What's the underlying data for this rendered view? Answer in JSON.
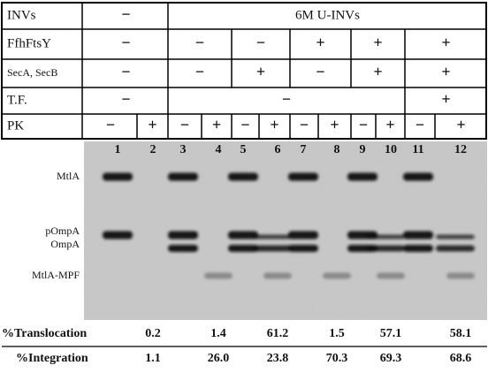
{
  "table": {
    "rows": [
      {
        "label": "INVs",
        "cells": [
          "−",
          "6M U-INVs"
        ]
      },
      {
        "label": "FfhFtsY",
        "cells": [
          "−",
          "−",
          "−",
          "+",
          "+",
          "+"
        ]
      },
      {
        "label": "SecA, SecB",
        "cells": [
          "−",
          "−",
          "+",
          "−",
          "+",
          "+"
        ]
      },
      {
        "label": "T.F.",
        "cells": [
          "−",
          "−",
          "+"
        ]
      },
      {
        "label": "PK",
        "cells": [
          "−",
          "+",
          "−",
          "+",
          "−",
          "+",
          "−",
          "+",
          "−",
          "+",
          "−",
          "+"
        ]
      }
    ]
  },
  "gel": {
    "lanes": [
      "1",
      "2",
      "3",
      "4",
      "5",
      "6",
      "7",
      "8",
      "9",
      "10",
      "11",
      "12"
    ],
    "band_labels": [
      "MtlA",
      "pOmpA",
      "OmpA",
      "MtlA-MPF"
    ]
  },
  "results": [
    {
      "label": "%Translocation",
      "values": [
        "0.2",
        "1.4",
        "61.2",
        "1.5",
        "57.1",
        "58.1"
      ]
    },
    {
      "label": "%Integration",
      "values": [
        "1.1",
        "26.0",
        "23.8",
        "70.3",
        "69.3",
        "68.6"
      ]
    }
  ]
}
